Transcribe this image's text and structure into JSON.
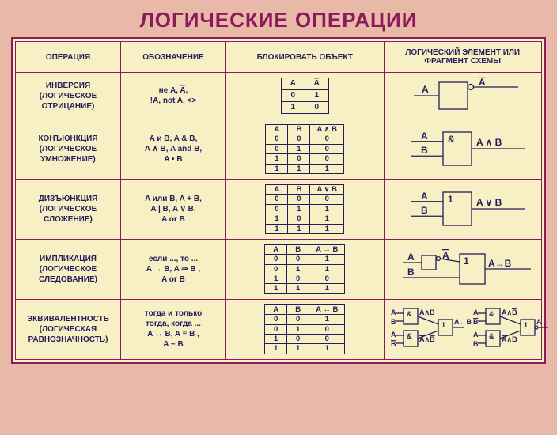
{
  "title": "ЛОГИЧЕСКИЕ ОПЕРАЦИИ",
  "headers": {
    "op": "ОПЕРАЦИЯ",
    "not": "ОБОЗНАЧЕНИЕ",
    "block": "БЛОКИРОВАТЬ ОБЪЕКТ",
    "elem": "ЛОГИЧЕСКИЙ ЭЛЕМЕНТ ИЛИ ФРАГМЕНТ СХЕМЫ"
  },
  "colors": {
    "background": "#e8b9a6",
    "panel": "#f6f0c4",
    "border": "#8b1a5c",
    "text": "#2a1a5c",
    "title": "#8b1a5c"
  },
  "rows": [
    {
      "name1": "ИНВЕРСИЯ",
      "name2": "(ЛОГИЧЕСКОЕ",
      "name3": "ОТРИЦАНИЕ)",
      "notation1": "не A, A̅,",
      "notation2": "!A, not A, <>",
      "tt_head": [
        "A",
        "A̅"
      ],
      "tt_rows": [
        [
          "0",
          "1"
        ],
        [
          "1",
          "0"
        ]
      ],
      "gate": {
        "type": "not",
        "in": [
          "A"
        ],
        "out": "A̅",
        "sym": ""
      }
    },
    {
      "name1": "КОНЪЮНКЦИЯ",
      "name2": "(ЛОГИЧЕСКОЕ",
      "name3": "УМНОЖЕНИЕ)",
      "notation1": "A и B, A & B,",
      "notation2": "A ∧ B, A and B,",
      "notation3": "A • B",
      "tt_head": [
        "A",
        "B",
        "A ∧ B"
      ],
      "tt_rows": [
        [
          "0",
          "0",
          "0"
        ],
        [
          "0",
          "1",
          "0"
        ],
        [
          "1",
          "0",
          "0"
        ],
        [
          "1",
          "1",
          "1"
        ]
      ],
      "gate": {
        "type": "and",
        "in": [
          "A",
          "B"
        ],
        "out": "A ∧ B",
        "sym": "&"
      }
    },
    {
      "name1": "ДИЗЪЮНКЦИЯ",
      "name2": "(ЛОГИЧЕСКОЕ",
      "name3": "СЛОЖЕНИЕ)",
      "notation1": "A или B, A + B,",
      "notation2": "A | B, A ∨ B,",
      "notation3": "A or B",
      "tt_head": [
        "A",
        "B",
        "A ∨ B"
      ],
      "tt_rows": [
        [
          "0",
          "0",
          "0"
        ],
        [
          "0",
          "1",
          "1"
        ],
        [
          "1",
          "0",
          "1"
        ],
        [
          "1",
          "1",
          "1"
        ]
      ],
      "gate": {
        "type": "or",
        "in": [
          "A",
          "B"
        ],
        "out": "A ∨ B",
        "sym": "1"
      }
    },
    {
      "name1": "ИМПЛИКАЦИЯ",
      "name2": "(ЛОГИЧЕСКОЕ",
      "name3": "СЛЕДОВАНИЕ)",
      "notation1": "если ..., то ...",
      "notation2": "A → B, A ⇒ B ,",
      "notation3": "A or B",
      "tt_head": [
        "A",
        "B",
        "A → B"
      ],
      "tt_rows": [
        [
          "0",
          "0",
          "1"
        ],
        [
          "0",
          "1",
          "1"
        ],
        [
          "1",
          "0",
          "0"
        ],
        [
          "1",
          "1",
          "1"
        ]
      ],
      "gate": {
        "type": "impl",
        "in": [
          "A",
          "B"
        ],
        "out": "A→B",
        "sym": "1",
        "pre": "A̅"
      }
    },
    {
      "name1": "ЭКВИВАЛЕНТНОСТЬ",
      "name2": "(ЛОГИЧЕСКАЯ",
      "name3": "РАВНОЗНАЧНОСТЬ)",
      "notation1": "тогда и только",
      "notation2": "тогда, когда ...",
      "notation3": "A ↔ B, A ≡ B ,",
      "notation4": "A ~ B",
      "tt_head": [
        "A",
        "B",
        "A ↔ B"
      ],
      "tt_rows": [
        [
          "0",
          "0",
          "1"
        ],
        [
          "0",
          "1",
          "0"
        ],
        [
          "1",
          "0",
          "0"
        ],
        [
          "1",
          "1",
          "1"
        ]
      ],
      "gate": {
        "type": "equiv"
      }
    }
  ]
}
